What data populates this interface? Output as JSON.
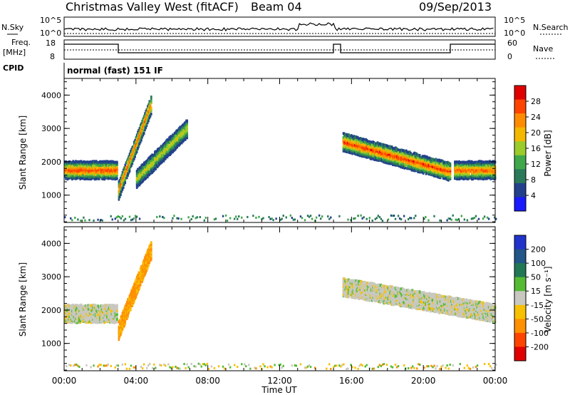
{
  "header": {
    "station": "Christmas Valley West (fitACF)",
    "beam": "Beam 04",
    "date": "09/Sep/2013"
  },
  "strips": {
    "nsky_label": "N.Sky",
    "nsearch_label": "N.Search",
    "freq_label_1": "Freq.",
    "freq_label_2": "[MHz]",
    "nave_label": "Nave",
    "cpid_label": "CPID",
    "cpid_value": "normal (fast) 151 IF",
    "noise_ticks_left": [
      "10^5",
      "10^0"
    ],
    "noise_ticks_right": [
      "10^5",
      "10^0"
    ],
    "freq_ticks": [
      "18",
      "8"
    ],
    "nave_ticks": [
      "60",
      "0"
    ]
  },
  "colorbars": {
    "power": {
      "label": "Power [dB]",
      "ticks": [
        "28",
        "24",
        "20",
        "16",
        "12",
        "8",
        "4"
      ],
      "colors": [
        "#e00000",
        "#ff4400",
        "#ff8c00",
        "#f5b800",
        "#9ccc2a",
        "#3fa84a",
        "#2a7a5a",
        "#22408c",
        "#1a1aff"
      ]
    },
    "velocity": {
      "label": "Velocity [m s⁻¹]",
      "ticks": [
        "200",
        "100",
        "50",
        "15",
        "-15",
        "-50",
        "-100",
        "-200"
      ],
      "colors": [
        "#2233cc",
        "#225588",
        "#227755",
        "#55bb33",
        "#c8c8c0",
        "#f7c000",
        "#ff9000",
        "#ff4400",
        "#e00000"
      ]
    }
  },
  "axes": {
    "ylabel": "Slant Range [km]",
    "xlabel": "Time UT",
    "xticks": [
      "00:00",
      "04:00",
      "08:00",
      "12:00",
      "16:00",
      "20:00",
      "00:00"
    ],
    "yticks": [
      "1000",
      "2000",
      "3000",
      "4000"
    ]
  },
  "chart_data": [
    {
      "type": "heatmap",
      "panel": "power",
      "title": "",
      "xlabel": "Time UT",
      "ylabel": "Slant Range [km]",
      "colorbar_label": "Power [dB]",
      "xlim_hours": [
        0,
        24
      ],
      "ylim_km": [
        180,
        4500
      ],
      "zlim": [
        0,
        30
      ],
      "features": [
        {
          "desc": "band",
          "t_start": 0.0,
          "t_end": 2.9,
          "range_km": 1750,
          "width_km": 250,
          "peak_db": 28
        },
        {
          "desc": "band",
          "t_start": 3.0,
          "t_end": 4.8,
          "range_km_start": 1150,
          "range_km_end": 3700,
          "peak_db": 26
        },
        {
          "desc": "band",
          "t_start": 4.0,
          "t_end": 6.8,
          "range_km_start": 1500,
          "range_km_end": 3000,
          "peak_db": 18
        },
        {
          "desc": "band",
          "t_start": 15.5,
          "t_end": 21.5,
          "range_km_start": 2600,
          "range_km_end": 1700,
          "peak_db": 28
        },
        {
          "desc": "band",
          "t_start": 21.7,
          "t_end": 24.0,
          "range_km": 1750,
          "width_km": 250,
          "peak_db": 26
        }
      ]
    },
    {
      "type": "heatmap",
      "panel": "velocity",
      "title": "",
      "xlabel": "Time UT",
      "ylabel": "Slant Range [km]",
      "colorbar_label": "Velocity [m s⁻¹]",
      "xlim_hours": [
        0,
        24
      ],
      "ylim_km": [
        180,
        4500
      ],
      "zlim": [
        -250,
        250
      ],
      "features": [
        {
          "desc": "ground scatter band",
          "t_start": 0.0,
          "t_end": 2.9,
          "range_km": 1900,
          "velocity": 0
        },
        {
          "desc": "ionospheric band",
          "t_start": 3.0,
          "t_end": 4.8,
          "range_km_start": 1400,
          "range_km_end": 3800,
          "velocity": -60
        },
        {
          "desc": "ground scatter band",
          "t_start": 15.5,
          "t_end": 24.0,
          "range_km_start": 2700,
          "range_km_end": 1900,
          "velocity": 0
        }
      ]
    }
  ]
}
